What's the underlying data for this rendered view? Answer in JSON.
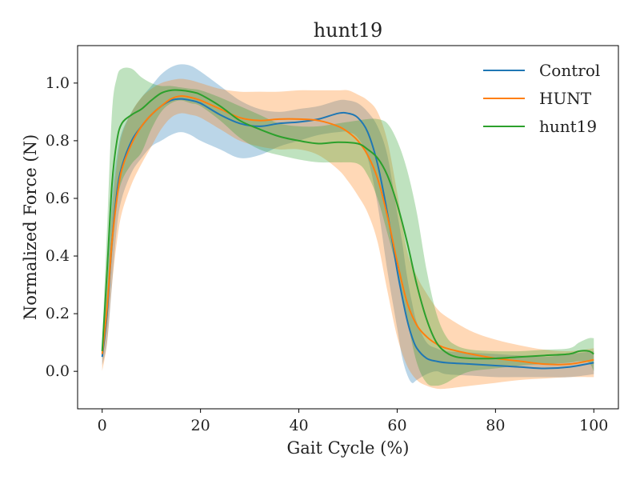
{
  "chart_data": {
    "type": "line",
    "title": "hunt19",
    "xlabel": "Gait Cycle (%)",
    "ylabel": "Normalized Force (N)",
    "xlim": [
      -5,
      105
    ],
    "ylim": [
      -0.13,
      1.13
    ],
    "xticks": [
      "0",
      "20",
      "40",
      "60",
      "80",
      "100"
    ],
    "yticks": [
      "0.0",
      "0.2",
      "0.4",
      "0.6",
      "0.8",
      "1.0"
    ],
    "grid": false,
    "legend_position": "top-right",
    "series": [
      {
        "name": "Control",
        "color": "#1f77b4",
        "x": [
          0,
          1,
          2,
          3,
          4,
          6,
          8,
          10,
          12,
          14,
          16,
          18,
          20,
          24,
          28,
          32,
          36,
          40,
          44,
          48,
          50,
          52,
          54,
          56,
          58,
          60,
          61,
          62,
          63,
          64,
          66,
          68,
          70,
          75,
          80,
          85,
          90,
          95,
          100
        ],
        "mean": [
          0.05,
          0.2,
          0.45,
          0.62,
          0.71,
          0.8,
          0.85,
          0.89,
          0.92,
          0.94,
          0.945,
          0.94,
          0.93,
          0.89,
          0.86,
          0.85,
          0.86,
          0.865,
          0.875,
          0.895,
          0.895,
          0.88,
          0.83,
          0.72,
          0.55,
          0.35,
          0.26,
          0.18,
          0.12,
          0.08,
          0.045,
          0.035,
          0.03,
          0.025,
          0.02,
          0.015,
          0.01,
          0.015,
          0.03
        ],
        "upper": [
          0.08,
          0.3,
          0.6,
          0.75,
          0.83,
          0.9,
          0.95,
          0.99,
          1.03,
          1.055,
          1.065,
          1.06,
          1.04,
          0.99,
          0.94,
          0.91,
          0.9,
          0.91,
          0.92,
          0.94,
          0.94,
          0.93,
          0.9,
          0.85,
          0.75,
          0.55,
          0.45,
          0.33,
          0.24,
          0.17,
          0.1,
          0.08,
          0.07,
          0.065,
          0.06,
          0.055,
          0.05,
          0.06,
          0.07
        ],
        "lower": [
          0.02,
          0.1,
          0.3,
          0.5,
          0.6,
          0.69,
          0.74,
          0.78,
          0.8,
          0.82,
          0.83,
          0.82,
          0.8,
          0.77,
          0.74,
          0.75,
          0.78,
          0.8,
          0.82,
          0.83,
          0.83,
          0.81,
          0.74,
          0.58,
          0.35,
          0.15,
          0.05,
          -0.01,
          -0.04,
          -0.03,
          -0.01,
          0.0,
          -0.01,
          -0.015,
          -0.02,
          -0.02,
          -0.02,
          -0.02,
          -0.01
        ]
      },
      {
        "name": "HUNT",
        "color": "#ff7f0e",
        "x": [
          0,
          1,
          2,
          3,
          4,
          6,
          8,
          10,
          12,
          14,
          16,
          18,
          20,
          24,
          28,
          32,
          36,
          40,
          44,
          48,
          50,
          52,
          54,
          56,
          58,
          60,
          62,
          64,
          66,
          68,
          70,
          75,
          80,
          85,
          90,
          95,
          100
        ],
        "mean": [
          0.06,
          0.22,
          0.45,
          0.6,
          0.7,
          0.79,
          0.85,
          0.89,
          0.92,
          0.945,
          0.955,
          0.95,
          0.94,
          0.91,
          0.88,
          0.87,
          0.875,
          0.875,
          0.87,
          0.85,
          0.83,
          0.8,
          0.75,
          0.67,
          0.54,
          0.38,
          0.24,
          0.16,
          0.12,
          0.095,
          0.08,
          0.06,
          0.045,
          0.035,
          0.025,
          0.025,
          0.04
        ],
        "upper": [
          0.1,
          0.3,
          0.55,
          0.72,
          0.82,
          0.9,
          0.95,
          0.98,
          1.0,
          1.01,
          1.015,
          1.01,
          1.0,
          0.98,
          0.97,
          0.97,
          0.97,
          0.975,
          0.975,
          0.975,
          0.975,
          0.96,
          0.94,
          0.9,
          0.8,
          0.62,
          0.42,
          0.33,
          0.27,
          0.22,
          0.19,
          0.14,
          0.11,
          0.09,
          0.075,
          0.07,
          0.08
        ],
        "lower": [
          0.0,
          0.1,
          0.3,
          0.45,
          0.55,
          0.65,
          0.72,
          0.78,
          0.84,
          0.88,
          0.895,
          0.89,
          0.88,
          0.84,
          0.8,
          0.78,
          0.77,
          0.77,
          0.75,
          0.7,
          0.66,
          0.61,
          0.55,
          0.45,
          0.28,
          0.12,
          0.02,
          -0.03,
          -0.05,
          -0.06,
          -0.06,
          -0.05,
          -0.04,
          -0.03,
          -0.025,
          -0.02,
          -0.02
        ]
      },
      {
        "name": "hunt19",
        "color": "#2ca02c",
        "x": [
          0,
          1,
          2,
          3,
          4,
          6,
          8,
          10,
          12,
          14,
          16,
          18,
          20,
          24,
          28,
          32,
          36,
          40,
          44,
          48,
          52,
          54,
          56,
          58,
          60,
          62,
          64,
          66,
          68,
          70,
          72,
          75,
          80,
          85,
          90,
          95,
          97,
          99,
          100
        ],
        "mean": [
          0.07,
          0.35,
          0.65,
          0.8,
          0.86,
          0.89,
          0.91,
          0.94,
          0.965,
          0.975,
          0.975,
          0.97,
          0.96,
          0.92,
          0.87,
          0.84,
          0.815,
          0.8,
          0.79,
          0.795,
          0.79,
          0.77,
          0.74,
          0.68,
          0.58,
          0.45,
          0.3,
          0.18,
          0.1,
          0.065,
          0.05,
          0.045,
          0.045,
          0.05,
          0.055,
          0.06,
          0.07,
          0.07,
          0.06
        ],
        "upper": [
          0.1,
          0.5,
          0.9,
          1.02,
          1.05,
          1.05,
          1.02,
          1.0,
          0.99,
          0.99,
          0.985,
          0.98,
          0.975,
          0.95,
          0.92,
          0.89,
          0.86,
          0.85,
          0.85,
          0.86,
          0.87,
          0.875,
          0.875,
          0.86,
          0.8,
          0.7,
          0.55,
          0.35,
          0.2,
          0.12,
          0.09,
          0.075,
          0.07,
          0.07,
          0.075,
          0.08,
          0.1,
          0.115,
          0.115
        ],
        "lower": [
          0.04,
          0.2,
          0.4,
          0.58,
          0.66,
          0.72,
          0.76,
          0.84,
          0.9,
          0.93,
          0.94,
          0.93,
          0.92,
          0.87,
          0.81,
          0.77,
          0.75,
          0.735,
          0.725,
          0.725,
          0.72,
          0.68,
          0.6,
          0.48,
          0.35,
          0.18,
          0.03,
          -0.04,
          -0.05,
          -0.04,
          -0.02,
          0.0,
          0.01,
          0.02,
          0.025,
          0.03,
          0.035,
          0.03,
          0.0
        ]
      }
    ]
  }
}
